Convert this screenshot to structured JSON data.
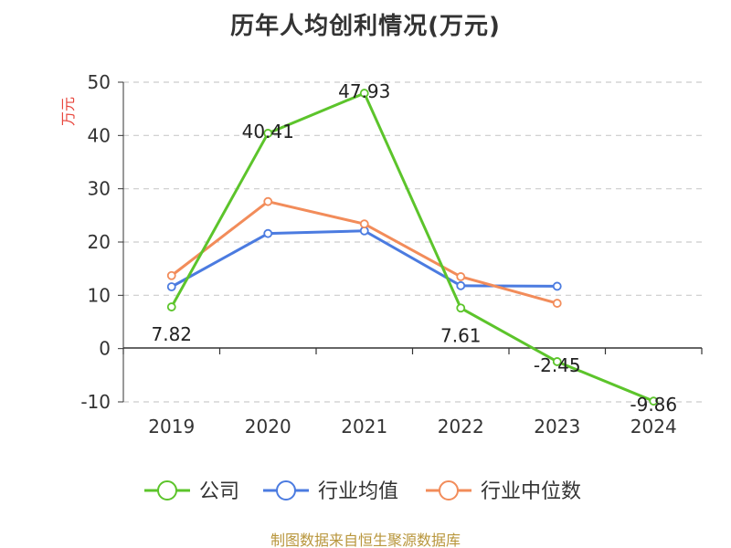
{
  "title": "历年人均创利情况(万元)",
  "source": "制图数据来自恒生聚源数据库",
  "colors": {
    "axis": "#333333",
    "grid": "#cccccc",
    "tick_text": "#333333",
    "unit_text": "#e8453c",
    "source_text": "#b8963c"
  },
  "chart_data": {
    "type": "line",
    "categories": [
      "2019",
      "2020",
      "2021",
      "2022",
      "2023",
      "2024"
    ],
    "ylabel": "万元",
    "ylim": [
      -10,
      50
    ],
    "yticks": [
      50,
      40,
      30,
      20,
      10,
      0,
      -10
    ],
    "grid": true,
    "legend_position": "bottom-center",
    "series": [
      {
        "name": "公司",
        "color": "#5cc42b",
        "values": [
          7.82,
          40.41,
          47.93,
          7.61,
          -2.45,
          -9.86
        ],
        "data_labels": [
          "7.82",
          "40.41",
          "47.93",
          "7.61",
          "-2.45",
          "-9.86"
        ]
      },
      {
        "name": "行业均值",
        "color": "#4b7be0",
        "values": [
          11.6,
          21.6,
          22.1,
          11.8,
          11.7,
          null
        ]
      },
      {
        "name": "行业中位数",
        "color": "#f28c5a",
        "values": [
          13.7,
          27.6,
          23.4,
          13.5,
          8.5,
          null
        ]
      }
    ]
  }
}
